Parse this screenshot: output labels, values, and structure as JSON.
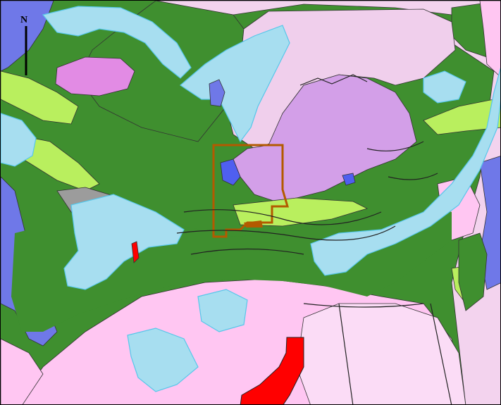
{
  "map": {
    "north_label": "N",
    "colors": {
      "base_green": "#3f8f2f",
      "water": "#a7def0",
      "water_outline": "#57c7ea",
      "pink": "#ffc6f2",
      "light_pink": "#f3d3ee",
      "lavender": "#d39fe8",
      "magenta": "#e28be4",
      "blue": "#6f78e8",
      "lime": "#b9ef5e",
      "grey": "#9c9c9c",
      "red": "#ff0000",
      "boundary": "#b35a00"
    },
    "icons": [
      "north-arrow-icon"
    ]
  }
}
